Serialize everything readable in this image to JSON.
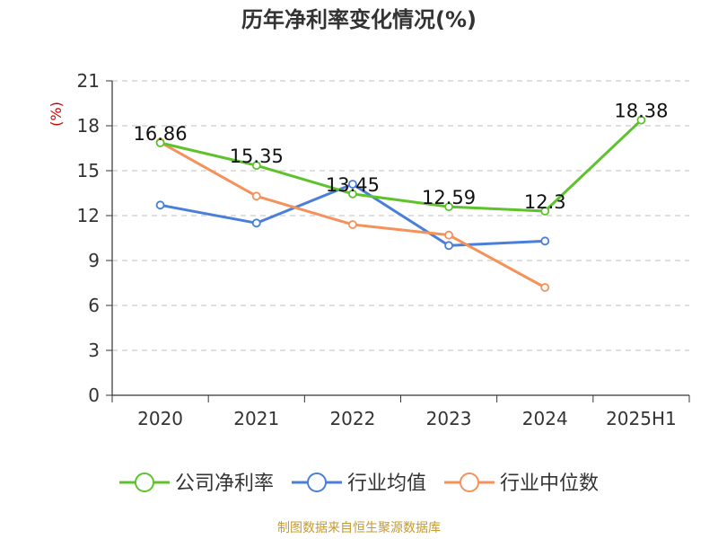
{
  "chart_data": {
    "type": "line",
    "title": "历年净利率变化情况(%)",
    "ylabel": "(%)",
    "xlabel": "",
    "categories": [
      "2020",
      "2021",
      "2022",
      "2023",
      "2024",
      "2025H1"
    ],
    "ylim": [
      0,
      21
    ],
    "yticks": [
      0,
      3,
      6,
      9,
      12,
      15,
      18,
      21
    ],
    "grid": "horizontal dashed",
    "legend_position": "bottom",
    "series": [
      {
        "name": "公司净利率",
        "color": "#5ec22d",
        "values": [
          16.86,
          15.35,
          13.45,
          12.59,
          12.3,
          18.38
        ],
        "labels": [
          "16.86",
          "15.35",
          "13.45",
          "12.59",
          "12.3",
          "18.38"
        ]
      },
      {
        "name": "行业均值",
        "color": "#4a7fd9",
        "values": [
          12.7,
          11.5,
          14.1,
          10.0,
          10.3,
          null
        ]
      },
      {
        "name": "行业中位数",
        "color": "#f5915a",
        "values": [
          16.9,
          13.3,
          11.4,
          10.7,
          7.2,
          null
        ]
      }
    ]
  },
  "footer": {
    "source": "制图数据来自恒生聚源数据库"
  },
  "colors": {
    "ylabel": "#cc0000",
    "source": "#c59a32",
    "axis": "#333333",
    "grid": "#cccccc"
  }
}
